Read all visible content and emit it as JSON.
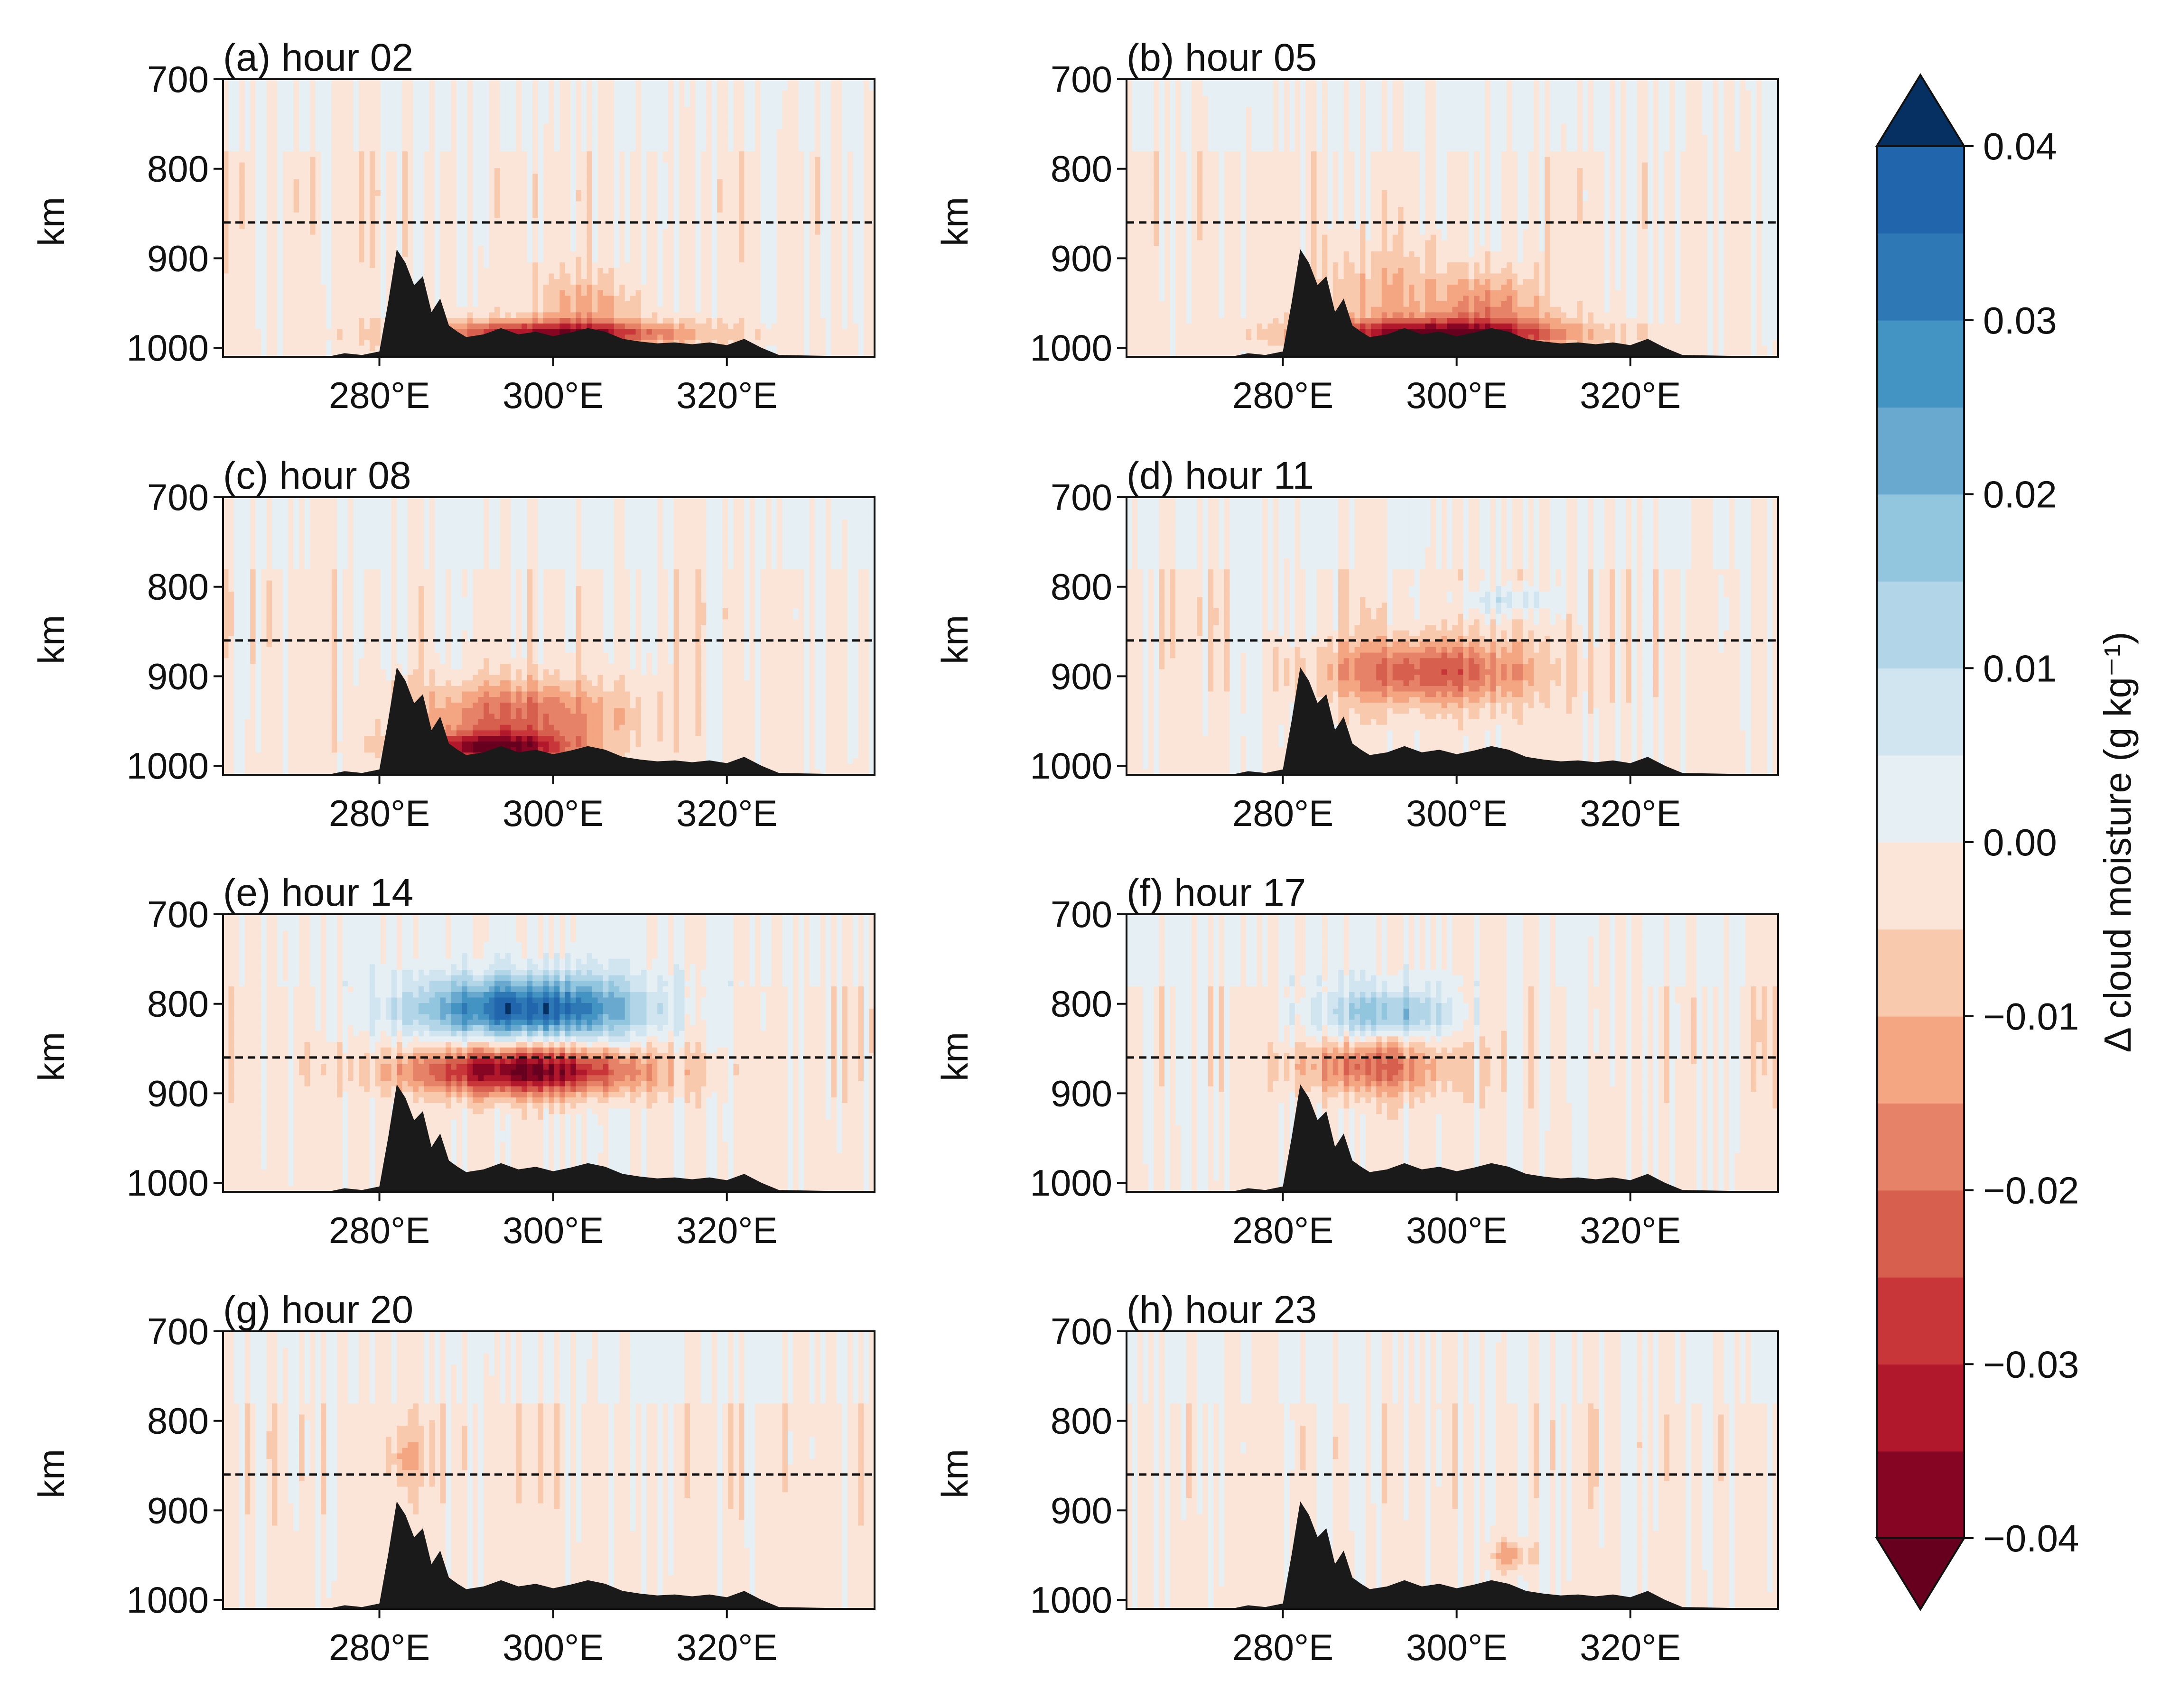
{
  "chart_data": {
    "type": "heatmap",
    "panels": [
      {
        "id": "a",
        "title": "(a) hour 02",
        "ylabel": "km",
        "features": [
          {
            "lon": 304,
            "lev": 955,
            "amp": -0.01,
            "wl": 6,
            "wp": 35
          },
          {
            "lon": 300,
            "lev": 985,
            "amp": -0.035,
            "wl": 14,
            "wp": 14
          }
        ]
      },
      {
        "id": "b",
        "title": "(b) hour 05",
        "ylabel": "km",
        "features": [
          {
            "lon": 304,
            "lev": 955,
            "amp": -0.014,
            "wl": 6,
            "wp": 35
          },
          {
            "lon": 298,
            "lev": 985,
            "amp": -0.038,
            "wl": 14,
            "wp": 16
          },
          {
            "lon": 292,
            "lev": 940,
            "amp": -0.008,
            "wl": 9,
            "wp": 50
          }
        ]
      },
      {
        "id": "c",
        "title": "(c) hour 08",
        "ylabel": "km",
        "features": [
          {
            "lon": 296,
            "lev": 945,
            "amp": -0.02,
            "wl": 12,
            "wp": 38
          },
          {
            "lon": 293,
            "lev": 980,
            "amp": -0.035,
            "wl": 9,
            "wp": 16
          }
        ]
      },
      {
        "id": "d",
        "title": "(d) hour 11",
        "ylabel": "km",
        "features": [
          {
            "lon": 297,
            "lev": 895,
            "amp": -0.022,
            "wl": 12,
            "wp": 35
          },
          {
            "lon": 306,
            "lev": 815,
            "amp": 0.01,
            "wl": 5,
            "wp": 14
          }
        ]
      },
      {
        "id": "e",
        "title": "(e) hour 14",
        "ylabel": "km",
        "features": [
          {
            "lon": 297,
            "lev": 805,
            "amp": 0.04,
            "wl": 13,
            "wp": 32
          },
          {
            "lon": 297,
            "lev": 875,
            "amp": -0.04,
            "wl": 13,
            "wp": 26
          }
        ]
      },
      {
        "id": "f",
        "title": "(f) hour 17",
        "ylabel": "km",
        "features": [
          {
            "lon": 292,
            "lev": 810,
            "amp": 0.02,
            "wl": 8,
            "wp": 28
          },
          {
            "lon": 290,
            "lev": 870,
            "amp": -0.02,
            "wl": 8,
            "wp": 30
          }
        ]
      },
      {
        "id": "g",
        "title": "(g) hour 20",
        "ylabel": "km",
        "features": [
          {
            "lon": 283,
            "lev": 840,
            "amp": -0.008,
            "wl": 2,
            "wp": 30
          }
        ]
      },
      {
        "id": "h",
        "title": "(h) hour 23",
        "ylabel": "km",
        "features": [
          {
            "lon": 306,
            "lev": 950,
            "amp": -0.012,
            "wl": 2,
            "wp": 16
          }
        ]
      }
    ],
    "x": {
      "range": [
        262,
        337
      ],
      "ticks": [
        280,
        300,
        320
      ],
      "tick_labels": [
        "280°E",
        "300°E",
        "320°E"
      ]
    },
    "y": {
      "range": [
        1010,
        700
      ],
      "ticks": [
        700,
        800,
        900,
        1000
      ],
      "tick_labels": [
        "700",
        "800",
        "900",
        "1000"
      ],
      "label": "km"
    },
    "reference_level": 860,
    "terrain_top_km": [
      [
        262,
        1010
      ],
      [
        274,
        1010
      ],
      [
        276,
        1006
      ],
      [
        278,
        1008
      ],
      [
        280,
        1004
      ],
      [
        281,
        950
      ],
      [
        282,
        890
      ],
      [
        283,
        905
      ],
      [
        284,
        930
      ],
      [
        285,
        920
      ],
      [
        286,
        960
      ],
      [
        287,
        945
      ],
      [
        288,
        975
      ],
      [
        289,
        982
      ],
      [
        290,
        988
      ],
      [
        292,
        985
      ],
      [
        294,
        978
      ],
      [
        296,
        985
      ],
      [
        298,
        982
      ],
      [
        300,
        987
      ],
      [
        302,
        983
      ],
      [
        304,
        978
      ],
      [
        306,
        982
      ],
      [
        308,
        990
      ],
      [
        310,
        993
      ],
      [
        312,
        995
      ],
      [
        314,
        994
      ],
      [
        316,
        996
      ],
      [
        318,
        994
      ],
      [
        320,
        997
      ],
      [
        322,
        990
      ],
      [
        324,
        1000
      ],
      [
        326,
        1008
      ],
      [
        337,
        1010
      ]
    ],
    "colorbar": {
      "label": "Δ cloud moisture (g kg⁻¹)",
      "ticks": [
        0.04,
        0.03,
        0.02,
        0.01,
        0.0,
        -0.01,
        -0.02,
        -0.03,
        -0.04
      ],
      "tick_labels": [
        "0.04",
        "0.03",
        "0.02",
        "0.01",
        "0.00",
        "−0.01",
        "−0.02",
        "−0.03",
        "−0.04"
      ],
      "levels": [
        -0.04,
        -0.035,
        -0.03,
        -0.025,
        -0.02,
        -0.015,
        -0.01,
        -0.005,
        0.0,
        0.005,
        0.01,
        0.015,
        0.02,
        0.025,
        0.03,
        0.035,
        0.04
      ],
      "colors": [
        "#67001f",
        "#860523",
        "#b2182b",
        "#c9363a",
        "#d6604d",
        "#e58267",
        "#f4a582",
        "#f9c9ad",
        "#fbe5d8",
        "#e6eff4",
        "#d1e5f0",
        "#b2d5e8",
        "#92c5de",
        "#6aa9cf",
        "#4393c3",
        "#2e78b5",
        "#2166ac",
        "#0f4a89",
        "#053061"
      ],
      "under_color": "#67001f",
      "over_color": "#053061",
      "extend": "both"
    }
  }
}
